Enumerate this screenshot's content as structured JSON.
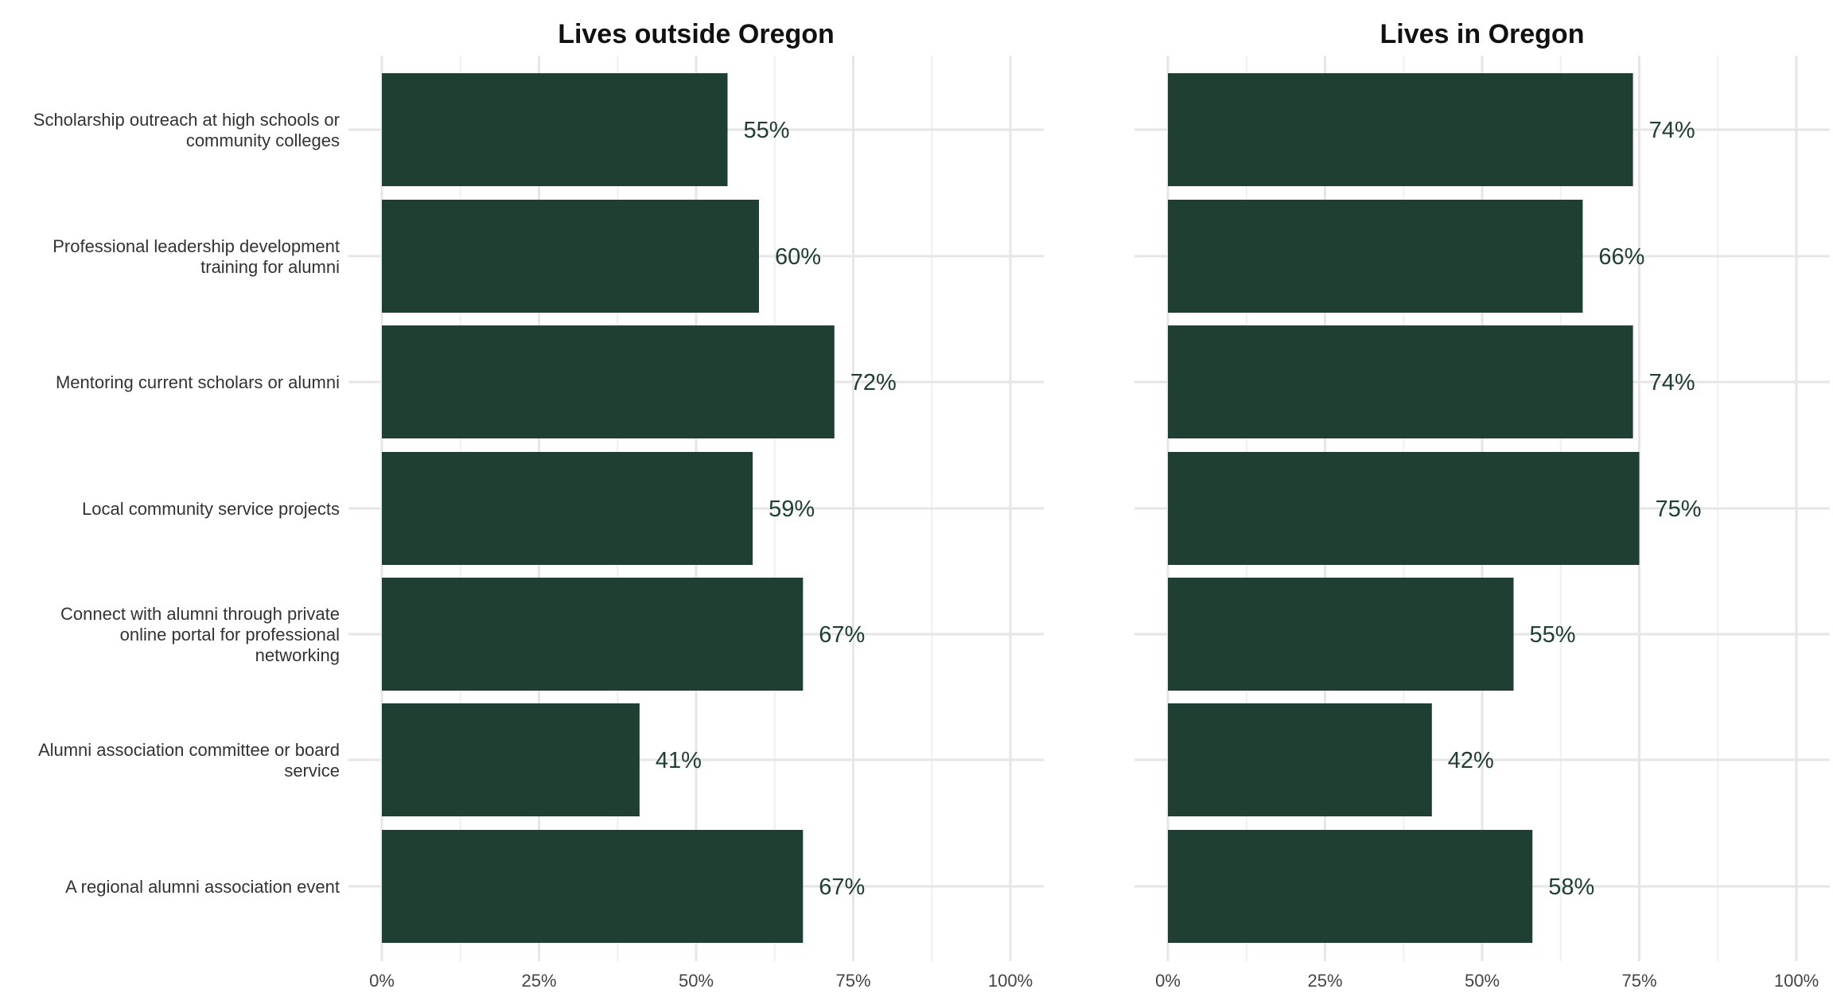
{
  "chart_data": {
    "type": "bar",
    "orientation": "horizontal",
    "categories": [
      "Scholarship outreach at high schools or community colleges",
      "Professional leadership development training for alumni",
      "Mentoring current scholars or alumni",
      "Local community service projects",
      "Connect with alumni through private online portal for professional networking",
      "Alumni association committee or board service",
      "A regional alumni association event"
    ],
    "category_label_lines": [
      [
        "Scholarship outreach at high schools or",
        "community colleges"
      ],
      [
        "Professional leadership development",
        "training for alumni"
      ],
      [
        "Mentoring current scholars or alumni"
      ],
      [
        "Local community service projects"
      ],
      [
        "Connect with alumni through private",
        "online portal for professional",
        "networking"
      ],
      [
        "Alumni association committee or board",
        "service"
      ],
      [
        "A regional alumni association event"
      ]
    ],
    "panels": [
      {
        "title": "Lives outside Oregon",
        "values": [
          55,
          60,
          72,
          59,
          67,
          41,
          67
        ],
        "labels": [
          "55%",
          "60%",
          "72%",
          "59%",
          "67%",
          "41%",
          "67%"
        ]
      },
      {
        "title": "Lives in Oregon",
        "values": [
          74,
          66,
          74,
          75,
          55,
          42,
          58
        ],
        "labels": [
          "74%",
          "66%",
          "74%",
          "75%",
          "55%",
          "42%",
          "58%"
        ]
      }
    ],
    "xlim": [
      0,
      100
    ],
    "x_ticks": [
      0,
      25,
      50,
      75,
      100
    ],
    "x_tick_labels": [
      "0%",
      "25%",
      "50%",
      "75%",
      "100%"
    ],
    "bar_color": "#203f33",
    "label_color": "#203f33",
    "grid": true,
    "legend": "none"
  }
}
